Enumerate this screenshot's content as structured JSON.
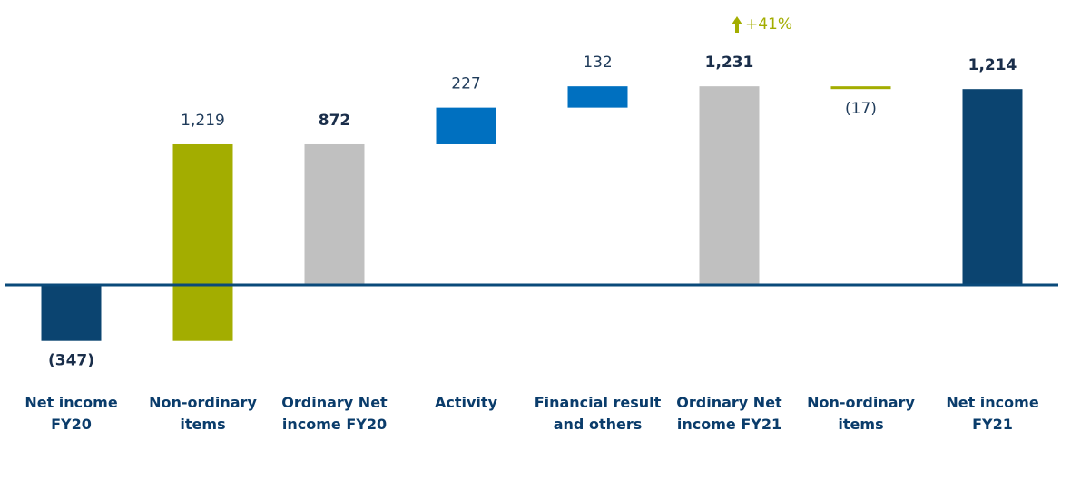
{
  "chart_data": {
    "type": "waterfall",
    "categories": [
      "Net income FY20",
      "Non-ordinary items",
      "Ordinary Net income FY20",
      "Activity",
      "Financial result and others",
      "Ordinary Net income FY21",
      "Non-ordinary items",
      "Net income FY21"
    ],
    "values": [
      -347,
      1219,
      872,
      227,
      132,
      1231,
      -17,
      1214
    ],
    "value_labels": [
      "(347)",
      "1,219",
      "872",
      "227",
      "132",
      "1,231",
      "(17)",
      "1,214"
    ],
    "totals": [
      true,
      false,
      true,
      false,
      false,
      true,
      false,
      true
    ],
    "colors": [
      "#0b4470",
      "#a3ad00",
      "#c0c0c0",
      "#0070c0",
      "#0070c0",
      "#c0c0c0",
      "#a3ad00",
      "#0b4470"
    ],
    "ylim": [
      -500,
      1300
    ],
    "annotation": "+41%"
  }
}
